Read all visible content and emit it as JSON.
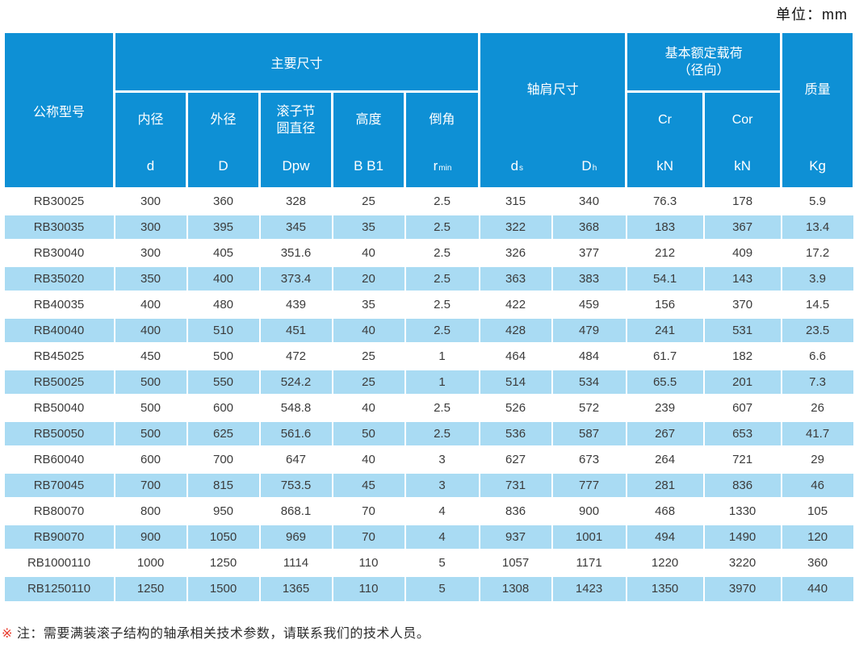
{
  "unit_label": "单位：mm",
  "colors": {
    "header_blue": "#0e90d5",
    "row_alt_blue": "#a9dbf3",
    "note_marker_red": "#e8392b",
    "data_text": "#3b3b3b"
  },
  "table": {
    "header": {
      "model": "公称型号",
      "main_dims": "主要尺寸",
      "inner_dia": {
        "name": "内径",
        "symbol": "d"
      },
      "outer_dia": {
        "name": "外径",
        "symbol": "D"
      },
      "roller_pitch": {
        "name_line1": "滚子节",
        "name_line2": "圆直径",
        "symbol": "Dpw"
      },
      "height": {
        "name": "高度",
        "symbol": "B  B1"
      },
      "chamfer": {
        "name": "倒角",
        "symbol_base": "r",
        "symbol_sub": "min"
      },
      "shoulder": {
        "name": "轴肩尺寸",
        "ds_base": "d",
        "ds_sub": "s",
        "dh_base": "D",
        "dh_sub": "h"
      },
      "load": {
        "name_line1": "基本额定载荷",
        "name_line2": "（径向）",
        "cr": "Cr",
        "cor": "Cor",
        "cr_unit": "kN",
        "cor_unit": "kN"
      },
      "mass": {
        "name": "质量",
        "unit": "Kg"
      }
    },
    "rows": [
      [
        "RB30025",
        "300",
        "360",
        "328",
        "25",
        "2.5",
        "315",
        "340",
        "76.3",
        "178",
        "5.9"
      ],
      [
        "RB30035",
        "300",
        "395",
        "345",
        "35",
        "2.5",
        "322",
        "368",
        "183",
        "367",
        "13.4"
      ],
      [
        "RB30040",
        "300",
        "405",
        "351.6",
        "40",
        "2.5",
        "326",
        "377",
        "212",
        "409",
        "17.2"
      ],
      [
        "RB35020",
        "350",
        "400",
        "373.4",
        "20",
        "2.5",
        "363",
        "383",
        "54.1",
        "143",
        "3.9"
      ],
      [
        "RB40035",
        "400",
        "480",
        "439",
        "35",
        "2.5",
        "422",
        "459",
        "156",
        "370",
        "14.5"
      ],
      [
        "RB40040",
        "400",
        "510",
        "451",
        "40",
        "2.5",
        "428",
        "479",
        "241",
        "531",
        "23.5"
      ],
      [
        "RB45025",
        "450",
        "500",
        "472",
        "25",
        "1",
        "464",
        "484",
        "61.7",
        "182",
        "6.6"
      ],
      [
        "RB50025",
        "500",
        "550",
        "524.2",
        "25",
        "1",
        "514",
        "534",
        "65.5",
        "201",
        "7.3"
      ],
      [
        "RB50040",
        "500",
        "600",
        "548.8",
        "40",
        "2.5",
        "526",
        "572",
        "239",
        "607",
        "26"
      ],
      [
        "RB50050",
        "500",
        "625",
        "561.6",
        "50",
        "2.5",
        "536",
        "587",
        "267",
        "653",
        "41.7"
      ],
      [
        "RB60040",
        "600",
        "700",
        "647",
        "40",
        "3",
        "627",
        "673",
        "264",
        "721",
        "29"
      ],
      [
        "RB70045",
        "700",
        "815",
        "753.5",
        "45",
        "3",
        "731",
        "777",
        "281",
        "836",
        "46"
      ],
      [
        "RB80070",
        "800",
        "950",
        "868.1",
        "70",
        "4",
        "836",
        "900",
        "468",
        "1330",
        "105"
      ],
      [
        "RB90070",
        "900",
        "1050",
        "969",
        "70",
        "4",
        "937",
        "1001",
        "494",
        "1490",
        "120"
      ],
      [
        "RB1000110",
        "1000",
        "1250",
        "1114",
        "110",
        "5",
        "1057",
        "1171",
        "1220",
        "3220",
        "360"
      ],
      [
        "RB1250110",
        "1250",
        "1500",
        "1365",
        "110",
        "5",
        "1308",
        "1423",
        "1350",
        "3970",
        "440"
      ]
    ]
  },
  "note": {
    "marker": "※",
    "text": "注：需要满装滚子结构的轴承相关技术参数，请联系我们的技术人员。"
  }
}
